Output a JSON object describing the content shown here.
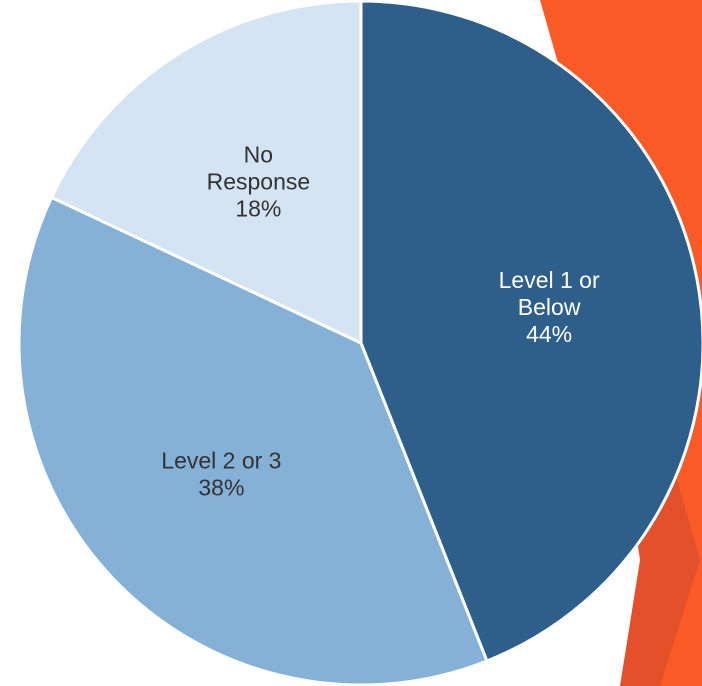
{
  "colors": {
    "background": "#ffffff",
    "accent_orange": "#fa5a26",
    "accent_orange_shadow": "#e4502a",
    "slice_border": "#ffffff"
  },
  "chart_data": {
    "type": "pie",
    "title": "",
    "slices": [
      {
        "category": "Level 1 or Below",
        "label_lines": [
          "Level 1 or",
          "Below"
        ],
        "value": 44,
        "value_label": "44%",
        "color": "#2e5f8a",
        "label_color": "#ffffff"
      },
      {
        "category": "Level 2 or 3",
        "label_lines": [
          "Level 2 or 3"
        ],
        "value": 38,
        "value_label": "38%",
        "color": "#85b1d7",
        "label_color": "#333333"
      },
      {
        "category": "No Response",
        "label_lines": [
          "No",
          "Response"
        ],
        "value": 18,
        "value_label": "18%",
        "color": "#d4e4f2",
        "label_color": "#333333"
      }
    ],
    "start_position": "12 o'clock",
    "direction": "clockwise",
    "legend": "none",
    "labels": "inside"
  }
}
